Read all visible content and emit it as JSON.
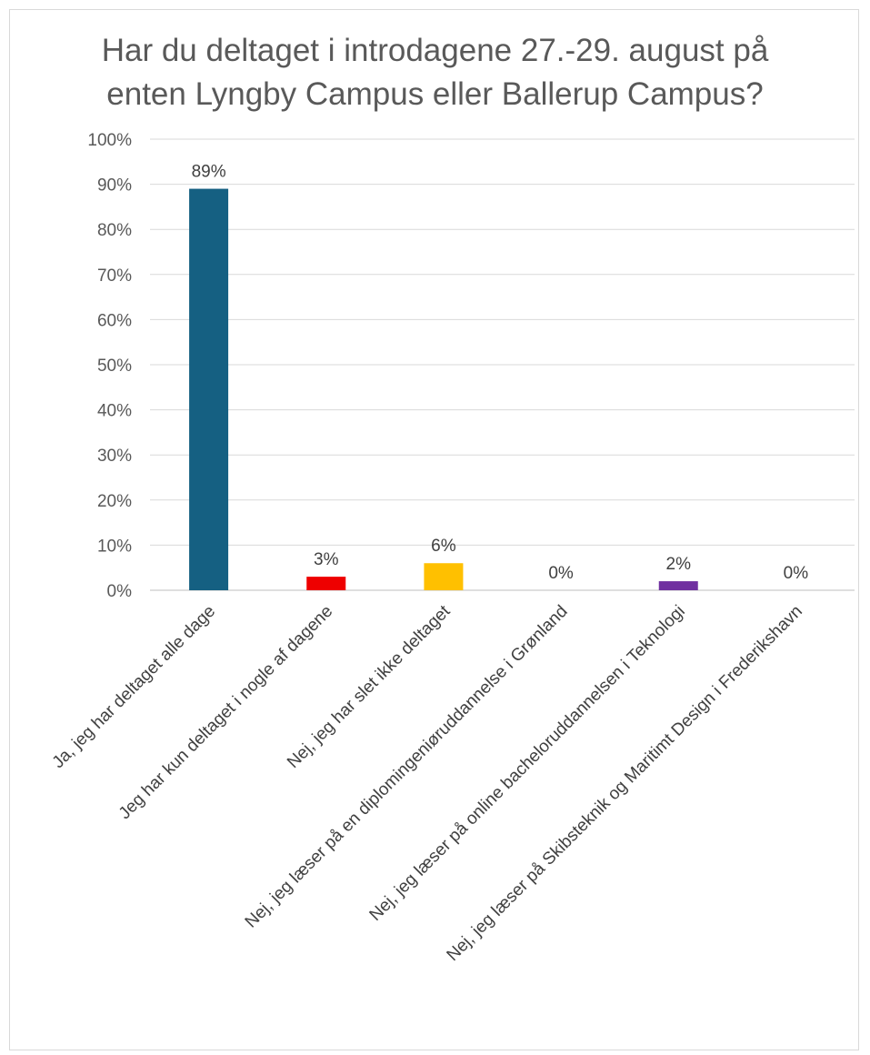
{
  "chart_data": {
    "type": "bar",
    "title": [
      "Har du deltaget i introdagene 27.-29. august på",
      "enten Lyngby Campus eller Ballerup Campus?"
    ],
    "categories": [
      "Ja, jeg har deltaget alle dage",
      "Jeg har kun deltaget i nogle af dagene",
      "Nej, jeg har slet ikke deltaget",
      "Nej, jeg læser på en diplomingeniøruddannelse i Grønland",
      "Nej, jeg læser på online bacheloruddannelsen i Teknologi",
      "Nej, jeg læser på Skibsteknik og Maritimt Design i Frederikshavn"
    ],
    "values": [
      89,
      3,
      6,
      0,
      2,
      0
    ],
    "data_labels": [
      "89%",
      "3%",
      "6%",
      "0%",
      "2%",
      "0%"
    ],
    "colors": [
      "#156082",
      "#ee0000",
      "#ffc000",
      "#156082",
      "#7030a0",
      "#156082"
    ],
    "ylim": [
      0,
      100
    ],
    "yticks": [
      "0%",
      "10%",
      "20%",
      "30%",
      "40%",
      "50%",
      "60%",
      "70%",
      "80%",
      "90%",
      "100%"
    ],
    "grid": true,
    "legend": "none"
  }
}
